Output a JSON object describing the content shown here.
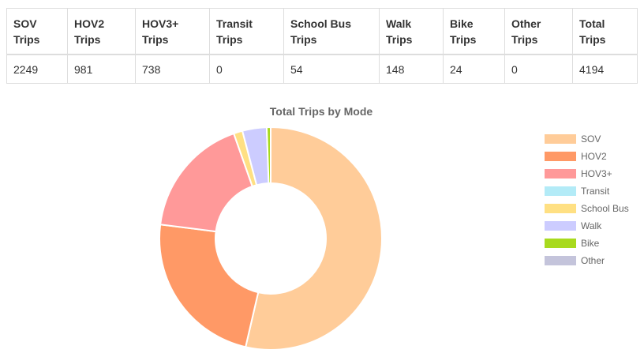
{
  "table": {
    "columns": [
      "SOV\nTrips",
      "HOV2\nTrips",
      "HOV3+\nTrips",
      "Transit\nTrips",
      "School Bus\nTrips",
      "Walk\nTrips",
      "Bike\nTrips",
      "Other\nTrips",
      "Total\nTrips"
    ],
    "rows": [
      [
        "2249",
        "981",
        "738",
        "0",
        "54",
        "148",
        "24",
        "0",
        "4194"
      ]
    ]
  },
  "chart_data": {
    "type": "pie",
    "donut": true,
    "title": "Total Trips by Mode",
    "legend_position": "right",
    "categories": [
      "SOV",
      "HOV2",
      "HOV3+",
      "Transit",
      "School Bus",
      "Walk",
      "Bike",
      "Other"
    ],
    "values": [
      2249,
      981,
      738,
      0,
      54,
      148,
      24,
      0
    ],
    "colors": [
      "#FFCC99",
      "#FF9966",
      "#FF9999",
      "#B3EBF7",
      "#FFE083",
      "#CCCCFF",
      "#A8DA1E",
      "#C4C4DB"
    ]
  }
}
